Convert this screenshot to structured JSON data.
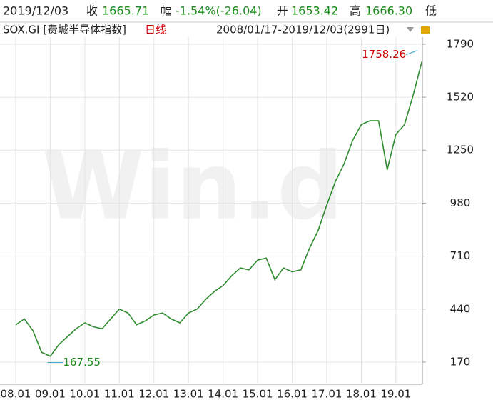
{
  "chart_data": {
    "type": "line",
    "header": {
      "date": "2019/12/03",
      "close_label": "收",
      "close": "1665.71",
      "change_label": "幅",
      "change": "-1.54%(-26.04)",
      "open_label": "开",
      "open": "1653.42",
      "high_label": "高",
      "high": "1666.30",
      "low_label": "低"
    },
    "title": "SOX.GI [费城半导体指数]",
    "period": "日线",
    "range": "2008/01/17-2019/12/03(2991日)",
    "watermark": "Win.d",
    "categories": [
      "08.01",
      null,
      null,
      null,
      "09.01",
      null,
      null,
      null,
      "10.01",
      null,
      null,
      null,
      "11.01",
      null,
      null,
      null,
      "12.01",
      null,
      null,
      null,
      "13.01",
      null,
      null,
      null,
      "14.01",
      null,
      null,
      null,
      "15.01",
      null,
      null,
      null,
      "16.01",
      null,
      null,
      null,
      "17.01",
      null,
      null,
      null,
      "18.01",
      null,
      null,
      null,
      "19.01",
      null,
      null,
      null
    ],
    "series": [
      {
        "name": "SOX.GI",
        "color": "#2e8b2e",
        "values": [
          360,
          390,
          330,
          220,
          200,
          260,
          300,
          340,
          370,
          350,
          340,
          390,
          440,
          420,
          360,
          380,
          410,
          420,
          390,
          370,
          420,
          440,
          490,
          530,
          560,
          610,
          650,
          640,
          690,
          700,
          590,
          650,
          630,
          640,
          750,
          840,
          970,
          1090,
          1180,
          1300,
          1380,
          1400,
          1400,
          1150,
          1330,
          1380,
          1530,
          1700
        ]
      }
    ],
    "high_mark": 1758.26,
    "low_mark": 167.55,
    "ylim": [
      57,
      1826
    ],
    "yticks": [
      170,
      440,
      710,
      980,
      1250,
      1520,
      1790
    ],
    "grid": true
  }
}
